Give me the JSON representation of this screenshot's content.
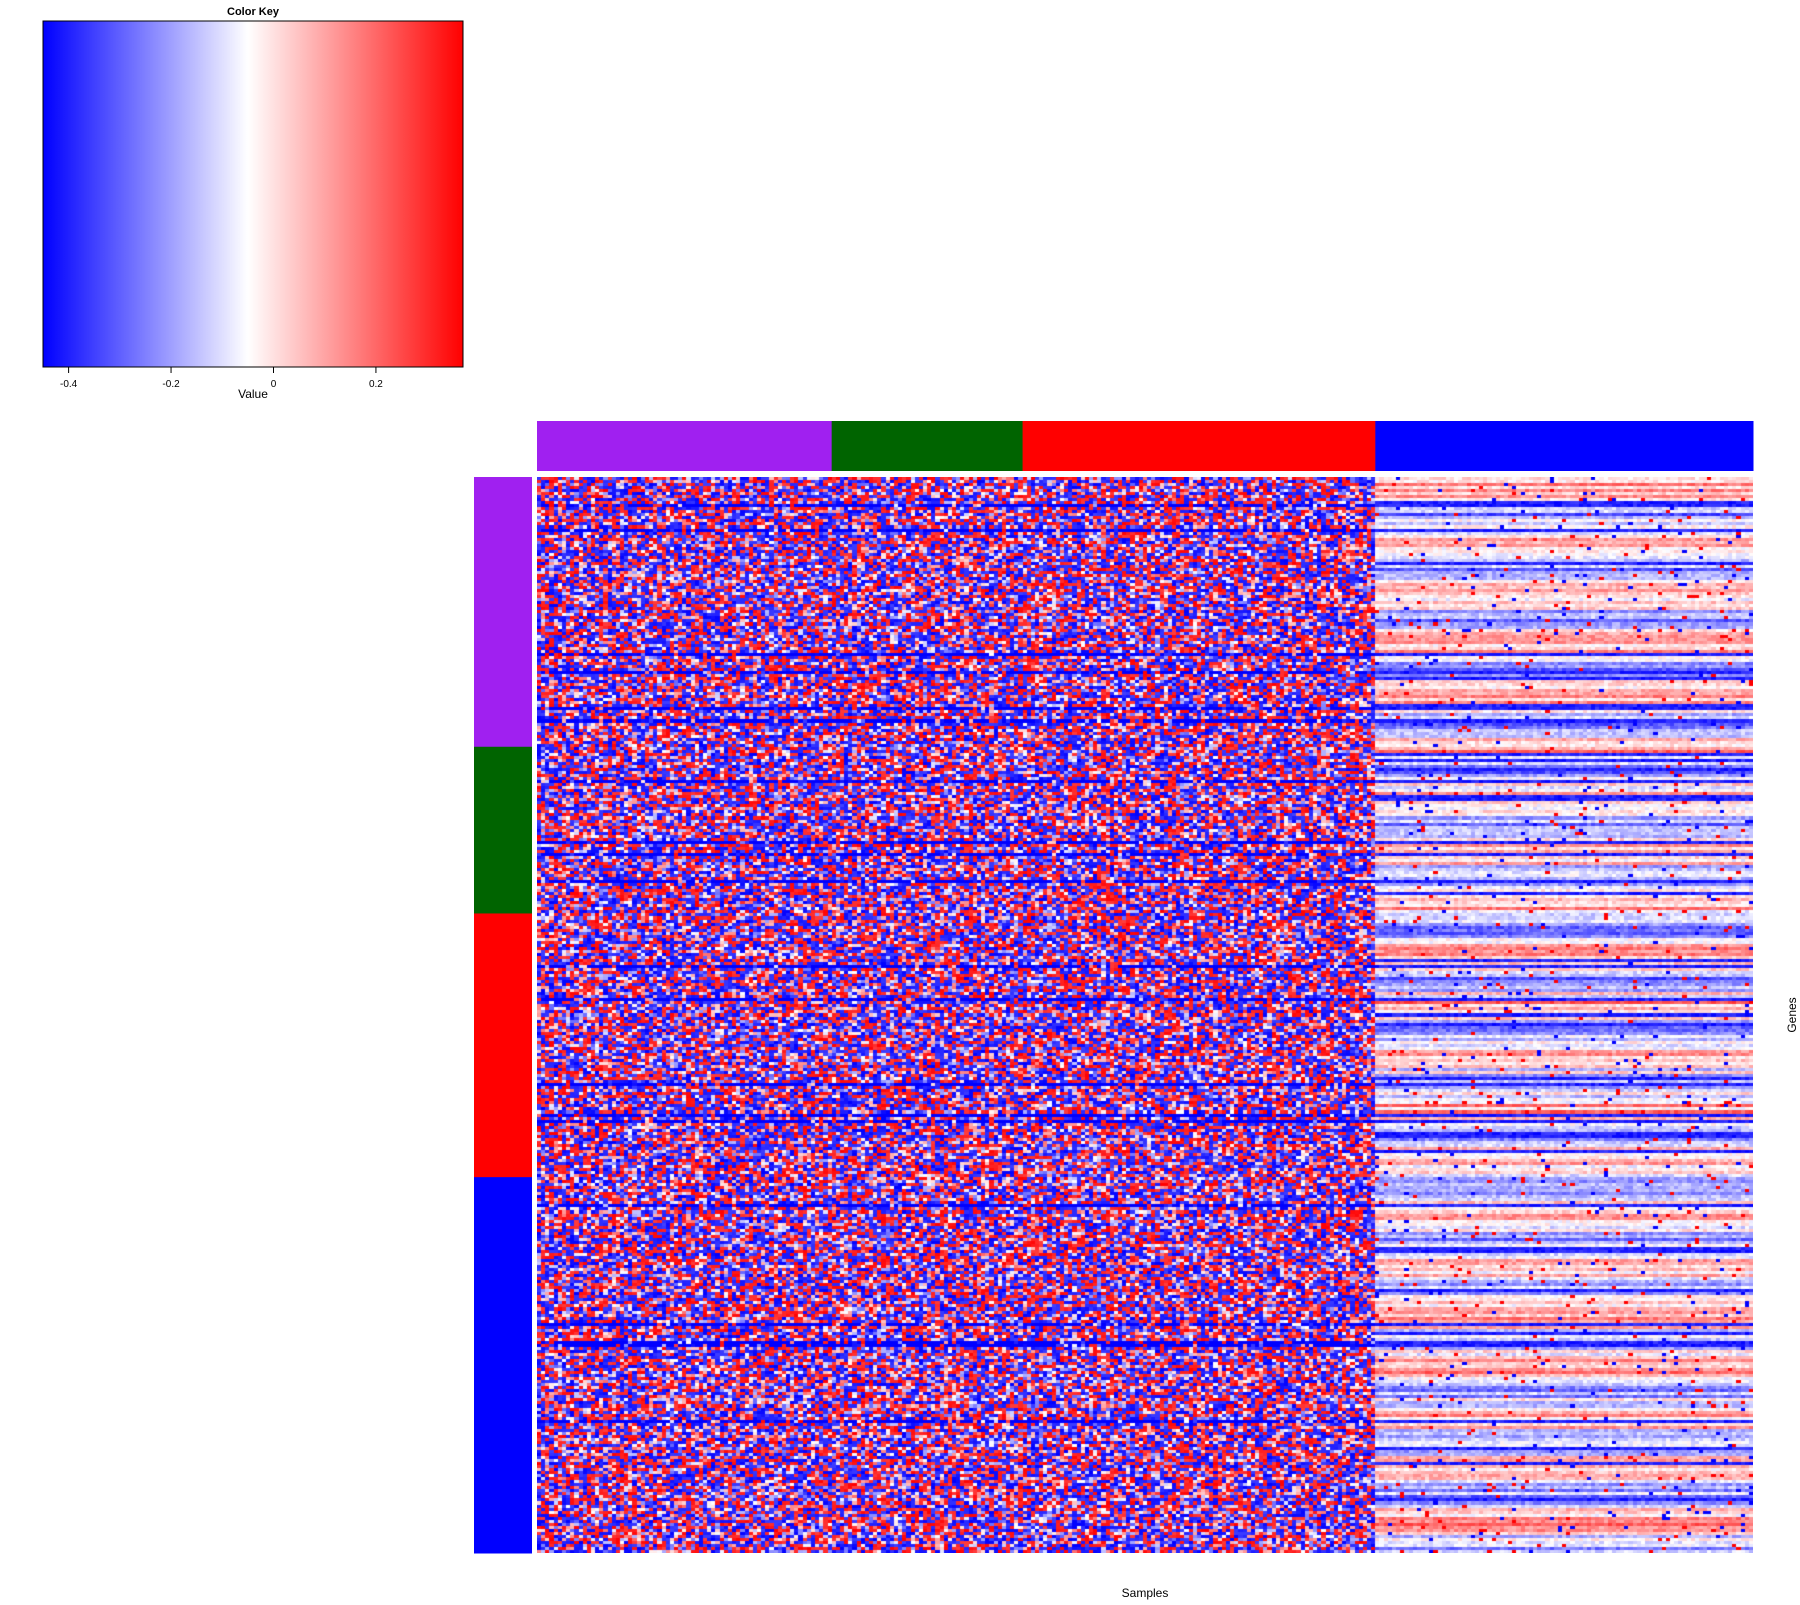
{
  "chart_data": {
    "type": "heatmap",
    "title": "",
    "xlabel": "Samples",
    "ylabel": "Genes",
    "color_key": {
      "title": "Color Key",
      "label": "Value",
      "range": [
        -0.45,
        0.37
      ],
      "ticks": [
        -0.4,
        -0.2,
        0,
        0.2
      ],
      "tick_labels": [
        "-0.4",
        "-0.2",
        "0",
        "0.2"
      ],
      "low_color": "#0000ff",
      "mid_color": "#ffffff",
      "mid_value": -0.05,
      "high_color": "#ff0000"
    },
    "column_groups": [
      {
        "color": "#a020f0",
        "size": 71
      },
      {
        "color": "#006400",
        "size": 46
      },
      {
        "color": "#ff0000",
        "size": 85
      },
      {
        "color": "#0000ff",
        "size": 91
      }
    ],
    "row_groups": [
      {
        "color": "#a020f0",
        "size": 89
      },
      {
        "color": "#006400",
        "size": 55
      },
      {
        "color": "#ff0000",
        "size": 87
      },
      {
        "color": "#0000ff",
        "size": 124
      }
    ],
    "grid": false
  }
}
